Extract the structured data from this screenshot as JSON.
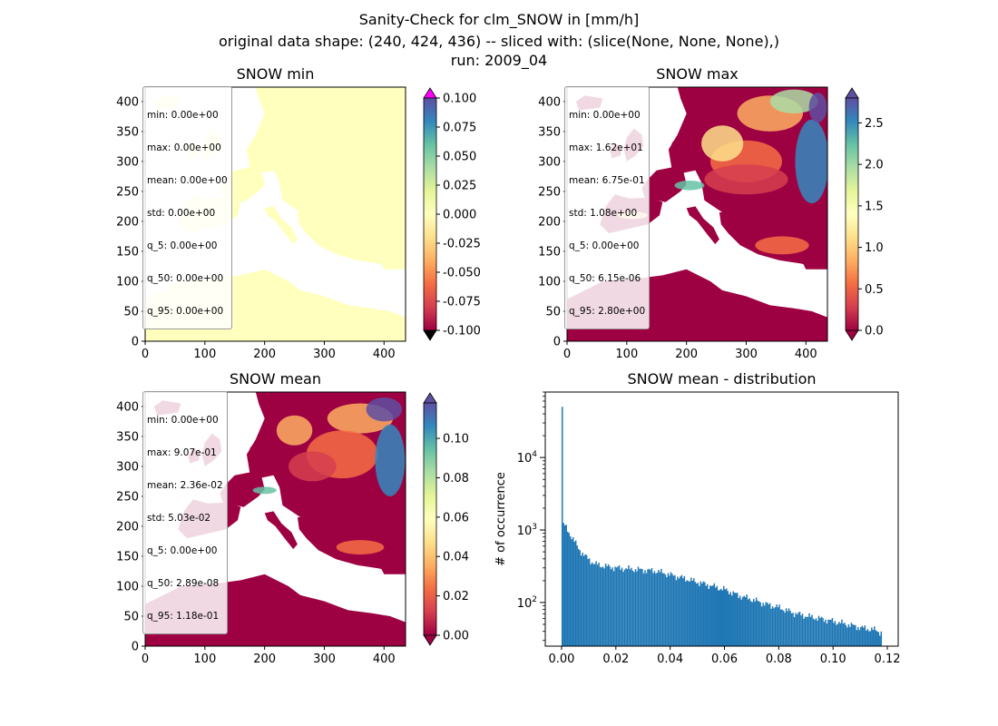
{
  "title_lines": [
    "Sanity-Check for clm_SNOW in [mm/h]",
    "original data shape: (240, 424, 436) -- sliced with: (slice(None, None, None),)",
    "run: 2009_04"
  ],
  "panels": {
    "min": {
      "title": "SNOW min",
      "stats": [
        "min: 0.00e+00",
        "max: 0.00e+00",
        "mean: 0.00e+00",
        "std: 0.00e+00",
        "q_5: 0.00e+00",
        "q_50: 0.00e+00",
        "q_95: 0.00e+00"
      ],
      "colorbar_ticks": [
        "-0.100",
        "-0.075",
        "-0.050",
        "-0.025",
        "0.000",
        "0.025",
        "0.050",
        "0.075",
        "0.100"
      ],
      "colorbar_range": [
        -0.1,
        0.1
      ]
    },
    "max": {
      "title": "SNOW max",
      "stats": [
        "min: 0.00e+00",
        "max: 1.62e+01",
        "mean: 6.75e-01",
        "std: 1.08e+00",
        "q_5: 0.00e+00",
        "q_50: 6.15e-06",
        "q_95: 2.80e+00"
      ],
      "colorbar_ticks": [
        "0.0",
        "0.5",
        "1.0",
        "1.5",
        "2.0",
        "2.5"
      ],
      "colorbar_range": [
        0,
        2.8
      ]
    },
    "mean": {
      "title": "SNOW mean",
      "stats": [
        "min: 0.00e+00",
        "max: 9.07e-01",
        "mean: 2.36e-02",
        "std: 5.03e-02",
        "q_5: 0.00e+00",
        "q_50: 2.89e-08",
        "q_95: 1.18e-01"
      ],
      "colorbar_ticks": [
        "0.00",
        "0.02",
        "0.04",
        "0.06",
        "0.08",
        "0.10"
      ],
      "colorbar_range": [
        0,
        0.118
      ]
    },
    "hist": {
      "title": "SNOW mean - distribution",
      "ylabel": "# of occurrence"
    }
  },
  "map_axes": {
    "xticks": [
      "0",
      "100",
      "200",
      "300",
      "400"
    ],
    "yticks": [
      "0",
      "50",
      "100",
      "150",
      "200",
      "250",
      "300",
      "350",
      "400"
    ],
    "xlim": [
      0,
      436
    ],
    "ylim": [
      0,
      424
    ]
  },
  "colors": {
    "min_field": "#ffffbe",
    "cmap_low": "#9e0142",
    "cmap_high": "#5e4fa2",
    "over_color": "#ff00ff",
    "under_color": "#000000",
    "hist_bar": "#1f77b4"
  },
  "chart_data": {
    "type": "bar",
    "title": "SNOW mean - distribution",
    "ylabel": "# of occurrence",
    "xlabel": "",
    "yscale": "log",
    "xlim": [
      -0.006,
      0.124
    ],
    "ylim": [
      25,
      80000
    ],
    "xticks": [
      "0.00",
      "0.02",
      "0.04",
      "0.06",
      "0.08",
      "0.10",
      "0.12"
    ],
    "yticks": [
      "10^2",
      "10^3",
      "10^4"
    ],
    "bins": {
      "start": 0.0,
      "width": 0.0005,
      "count": 236
    },
    "sample_counts": [
      {
        "x": 0.0,
        "y": 50000
      },
      {
        "x": 0.0005,
        "y": 1250
      },
      {
        "x": 0.001,
        "y": 1150
      },
      {
        "x": 0.002,
        "y": 1000
      },
      {
        "x": 0.004,
        "y": 750
      },
      {
        "x": 0.006,
        "y": 560
      },
      {
        "x": 0.008,
        "y": 450
      },
      {
        "x": 0.01,
        "y": 390
      },
      {
        "x": 0.012,
        "y": 340
      },
      {
        "x": 0.015,
        "y": 320
      },
      {
        "x": 0.02,
        "y": 300
      },
      {
        "x": 0.025,
        "y": 290
      },
      {
        "x": 0.03,
        "y": 280
      },
      {
        "x": 0.035,
        "y": 270
      },
      {
        "x": 0.04,
        "y": 240
      },
      {
        "x": 0.045,
        "y": 215
      },
      {
        "x": 0.05,
        "y": 190
      },
      {
        "x": 0.055,
        "y": 170
      },
      {
        "x": 0.06,
        "y": 150
      },
      {
        "x": 0.065,
        "y": 125
      },
      {
        "x": 0.07,
        "y": 110
      },
      {
        "x": 0.075,
        "y": 95
      },
      {
        "x": 0.08,
        "y": 85
      },
      {
        "x": 0.085,
        "y": 72
      },
      {
        "x": 0.09,
        "y": 65
      },
      {
        "x": 0.095,
        "y": 60
      },
      {
        "x": 0.1,
        "y": 55
      },
      {
        "x": 0.105,
        "y": 50
      },
      {
        "x": 0.11,
        "y": 45
      },
      {
        "x": 0.115,
        "y": 42
      },
      {
        "x": 0.118,
        "y": 38
      }
    ]
  }
}
